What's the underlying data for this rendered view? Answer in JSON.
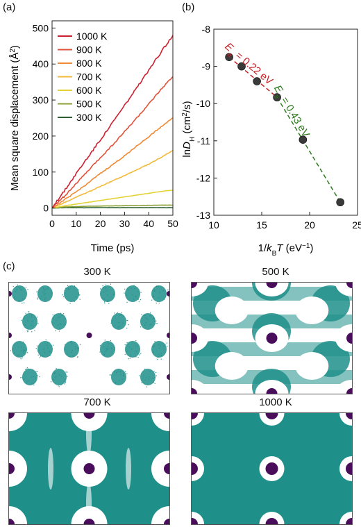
{
  "panels": {
    "a": "(a)",
    "b": "(b)",
    "c": "(c)"
  },
  "chart_data": [
    {
      "type": "line",
      "xlabel": "Time (ps)",
      "ylabel": "Mean square displacement (Å²)",
      "xlim": [
        0,
        50
      ],
      "ylim": [
        -20,
        520
      ],
      "xticks": [
        0,
        10,
        20,
        30,
        40,
        50
      ],
      "yticks": [
        0,
        100,
        200,
        300,
        400,
        500
      ],
      "legend_position": "top-left",
      "series": [
        {
          "name": "1000 K",
          "color": "#cc1f2f",
          "x": [
            0,
            5,
            10,
            15,
            20,
            25,
            30,
            35,
            40,
            45,
            50
          ],
          "values": [
            0,
            47,
            96,
            143,
            190,
            237,
            285,
            333,
            382,
            432,
            480
          ]
        },
        {
          "name": "900 K",
          "color": "#e0513a",
          "x": [
            0,
            5,
            10,
            15,
            20,
            25,
            30,
            35,
            40,
            45,
            50
          ],
          "values": [
            0,
            32,
            68,
            104,
            140,
            175,
            212,
            250,
            288,
            328,
            365
          ]
        },
        {
          "name": "800 K",
          "color": "#ef8a35",
          "x": [
            0,
            5,
            10,
            15,
            20,
            25,
            30,
            35,
            40,
            45,
            50
          ],
          "values": [
            0,
            22,
            45,
            70,
            96,
            120,
            145,
            172,
            198,
            225,
            250
          ]
        },
        {
          "name": "700 K",
          "color": "#f2b93a",
          "x": [
            0,
            5,
            10,
            15,
            20,
            25,
            30,
            35,
            40,
            45,
            50
          ],
          "values": [
            0,
            15,
            30,
            45,
            60,
            75,
            90,
            106,
            122,
            140,
            160
          ]
        },
        {
          "name": "600 K",
          "color": "#e3d336",
          "x": [
            0,
            5,
            10,
            15,
            20,
            25,
            30,
            35,
            40,
            45,
            50
          ],
          "values": [
            0,
            6,
            11,
            16,
            21,
            26,
            31,
            36,
            41,
            46,
            50
          ]
        },
        {
          "name": "500 K",
          "color": "#8ea23a",
          "x": [
            0,
            5,
            10,
            15,
            20,
            25,
            30,
            35,
            40,
            45,
            50
          ],
          "values": [
            0,
            3,
            4,
            5,
            5.5,
            6,
            6.5,
            7,
            7.5,
            8,
            8
          ]
        },
        {
          "name": "300 K",
          "color": "#2b6131",
          "x": [
            0,
            5,
            10,
            15,
            20,
            25,
            30,
            35,
            40,
            45,
            50
          ],
          "values": [
            0,
            1,
            1,
            1,
            1,
            1,
            1,
            1,
            1,
            1,
            1
          ]
        }
      ]
    },
    {
      "type": "scatter",
      "xlabel": "1/kBT (eV⁻¹)",
      "ylabel": "lnDH (cm²/s)",
      "xlim": [
        10,
        25
      ],
      "ylim": [
        -13,
        -8
      ],
      "xticks": [
        10,
        15,
        20,
        25
      ],
      "yticks": [
        -8,
        -9,
        -10,
        -11,
        -12,
        -13
      ],
      "points": [
        {
          "x": 11.6,
          "y": -8.75
        },
        {
          "x": 12.9,
          "y": -9.0
        },
        {
          "x": 14.5,
          "y": -9.4
        },
        {
          "x": 16.6,
          "y": -9.83
        },
        {
          "x": 19.3,
          "y": -10.97
        },
        {
          "x": 23.2,
          "y": -12.65
        }
      ],
      "fits": [
        {
          "label": "Ea = 0.22 eV",
          "color": "#c41f25",
          "x": [
            11.6,
            16.6
          ],
          "y": [
            -8.75,
            -9.83
          ]
        },
        {
          "label": "Ea = 0.43 eV",
          "color": "#2c7a1d",
          "x": [
            16.6,
            23.2
          ],
          "y": [
            -9.83,
            -12.65
          ]
        }
      ]
    }
  ],
  "snapshots": [
    {
      "title": "300 K",
      "regime": "isolated"
    },
    {
      "title": "500 K",
      "regime": "network"
    },
    {
      "title": "700 K",
      "regime": "partial"
    },
    {
      "title": "1000 K",
      "regime": "full"
    }
  ],
  "snapshot_colors": {
    "hydrogen": "#1f8f8a",
    "metal": "#4a0d5c",
    "background": "#ffffff"
  },
  "labels": {
    "fit_022": {
      "pre": "E",
      "sub": "a",
      "post": " = 0.22 eV"
    },
    "fit_043": {
      "pre": "E",
      "sub": "a",
      "post": " = 0.43 eV"
    },
    "b_xlabel": {
      "a": "1/",
      "b": "k",
      "c": "B",
      "d": "T",
      "e": " (eV",
      "f": "−1",
      "g": ")"
    },
    "b_ylabel": {
      "a": "ln",
      "b": "D",
      "c": "H",
      "d": " (cm",
      "e": "2",
      "f": "/s)"
    },
    "a_ylabel": {
      "a": "Mean square displacement (Å",
      "b": "2",
      "c": ")"
    }
  }
}
